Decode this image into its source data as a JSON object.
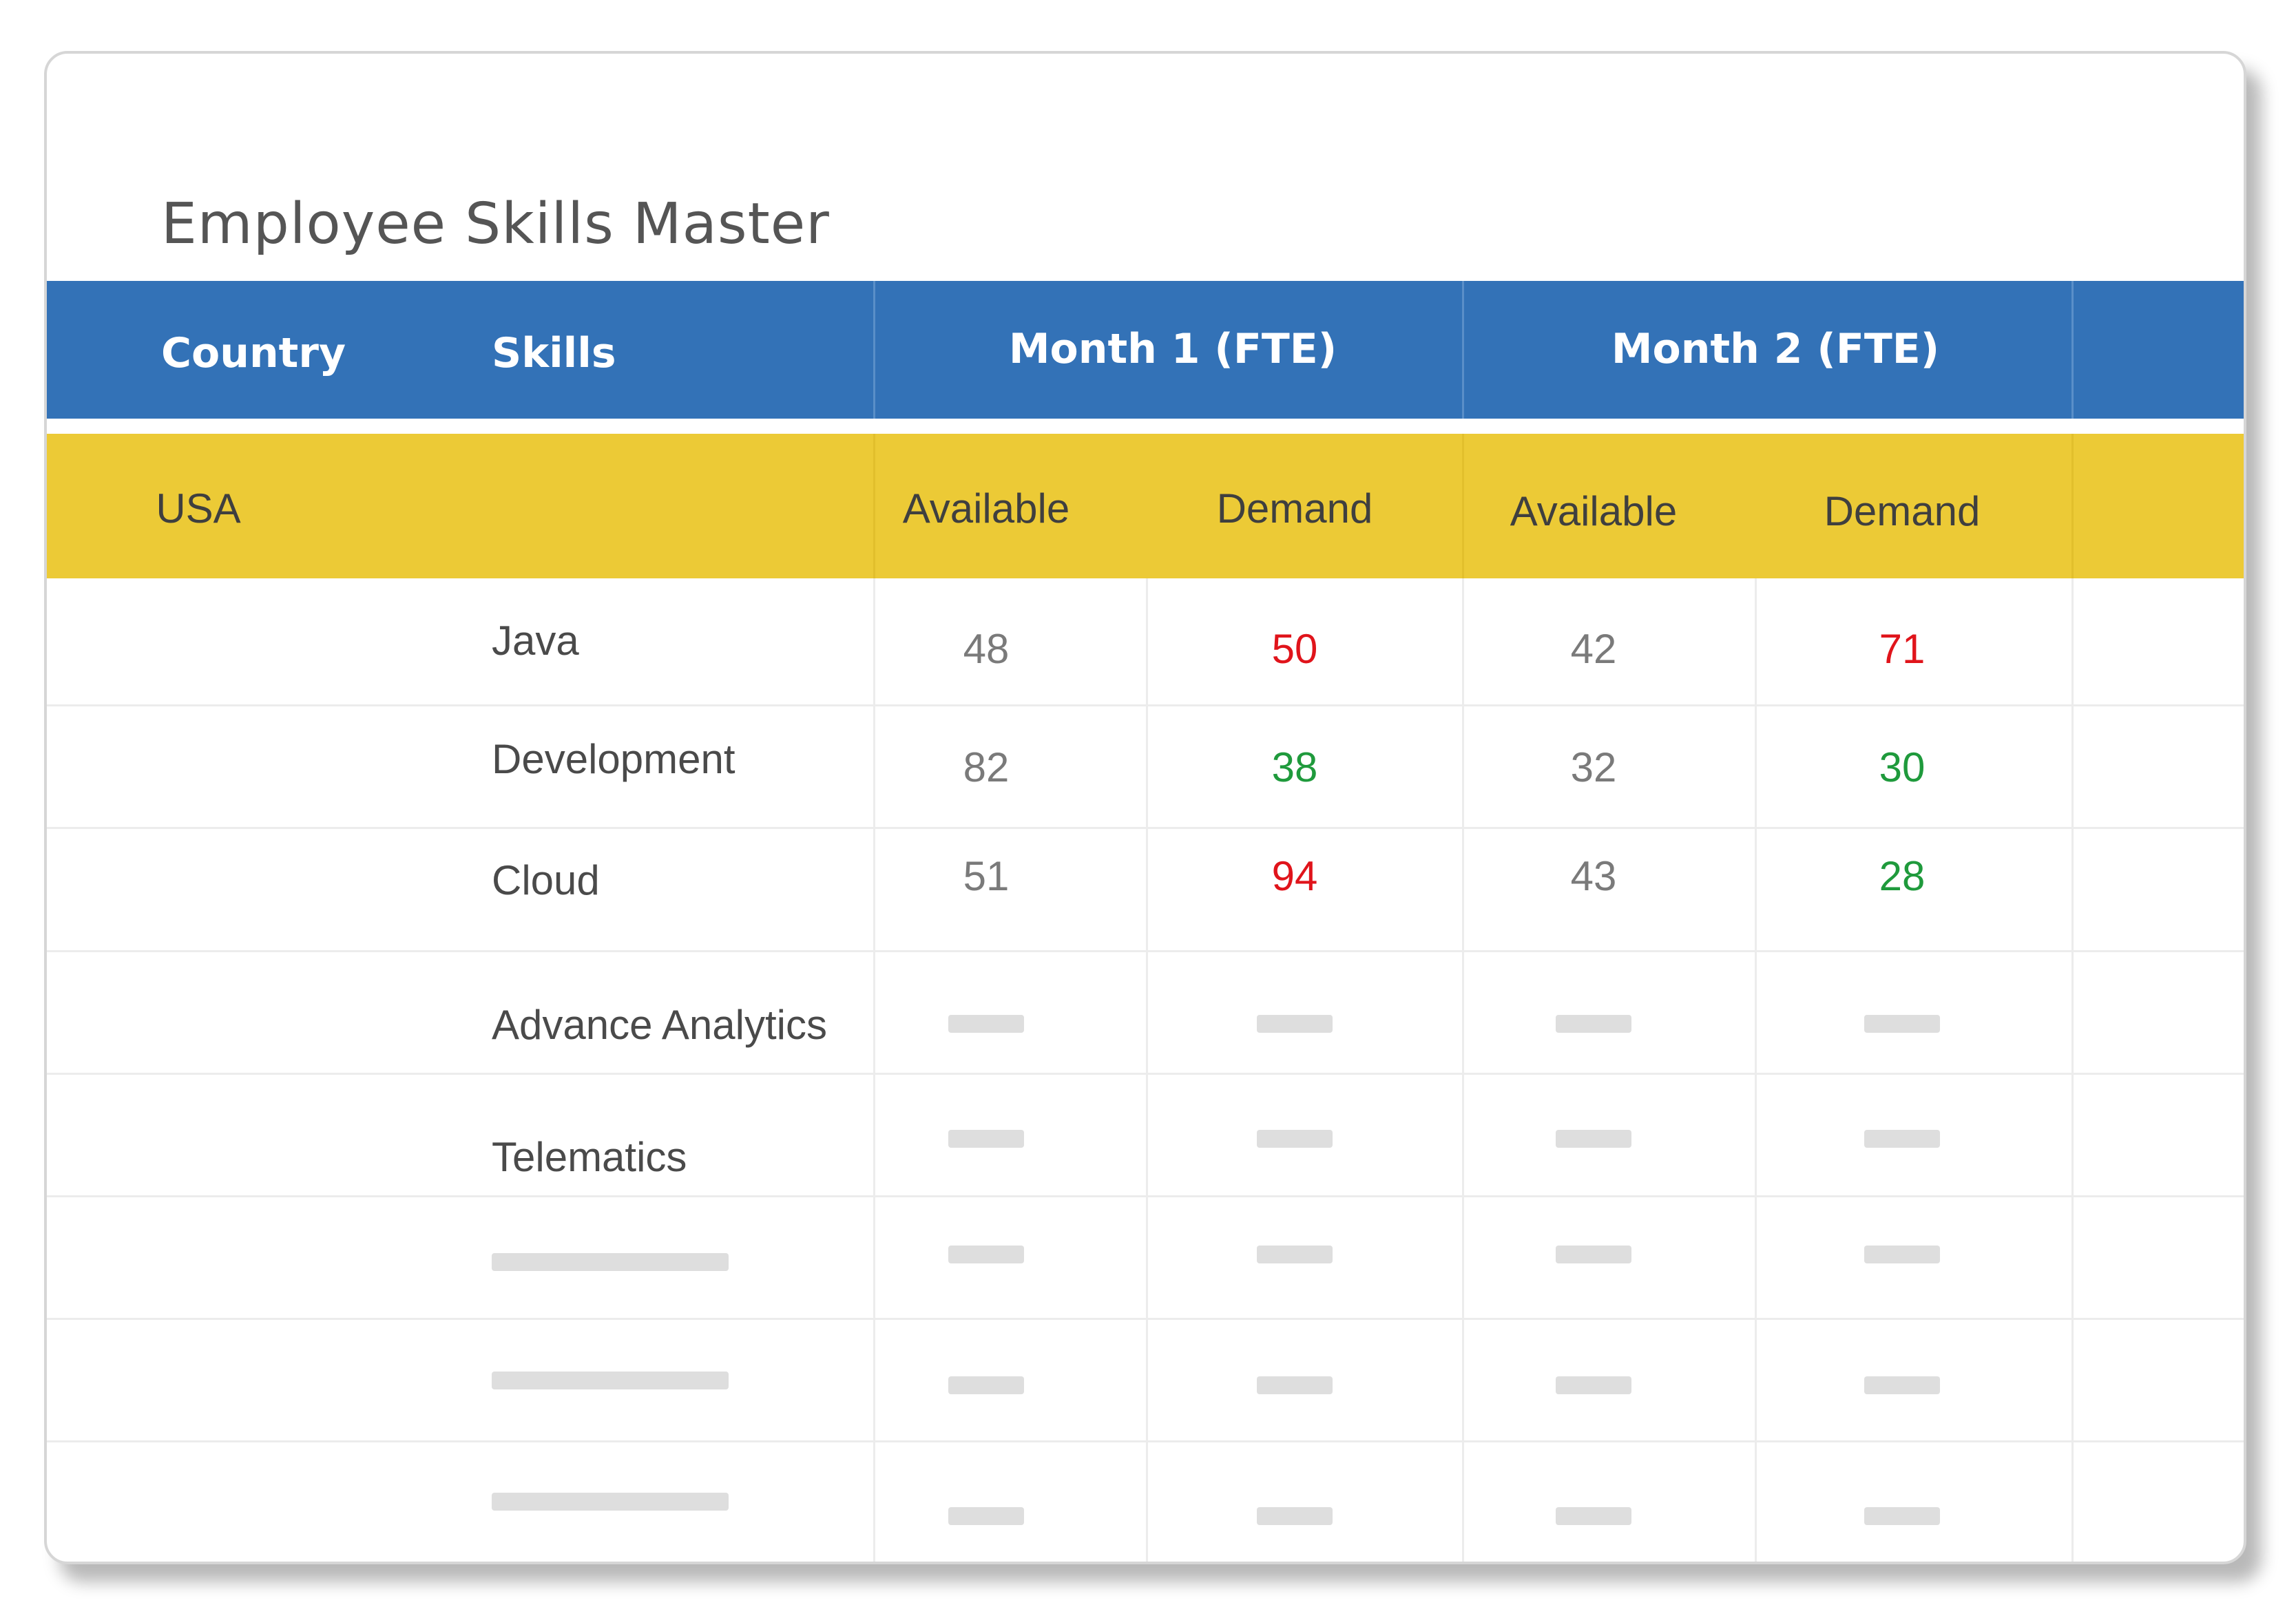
{
  "title": "Employee Skills Master",
  "header": {
    "country": "Country",
    "skills": "Skills",
    "month1": "Month 1 (FTE)",
    "month2": "Month 2 (FTE)"
  },
  "subheader": {
    "country_value": "USA",
    "m1_available": "Available",
    "m1_demand": "Demand",
    "m2_available": "Available",
    "m2_demand": "Demand"
  },
  "rows": [
    {
      "skill": "Java",
      "m1_available": "48",
      "m1_demand": "50",
      "m2_available": "42",
      "m2_demand": "71"
    },
    {
      "skill": "Development",
      "m1_available": "82",
      "m1_demand": "38",
      "m2_available": "32",
      "m2_demand": "30"
    },
    {
      "skill": "Cloud",
      "m1_available": "51",
      "m1_demand": "94",
      "m2_available": "43",
      "m2_demand": "28"
    },
    {
      "skill": "Advance Analytics"
    },
    {
      "skill": "Telematics"
    }
  ],
  "colors": {
    "header_blue": "#3372b7",
    "subheader_yellow": "#ecca36",
    "demand_shortfall_red": "#e0141b",
    "demand_met_green": "#1f9a3c",
    "placeholder_grey": "#dedede"
  }
}
